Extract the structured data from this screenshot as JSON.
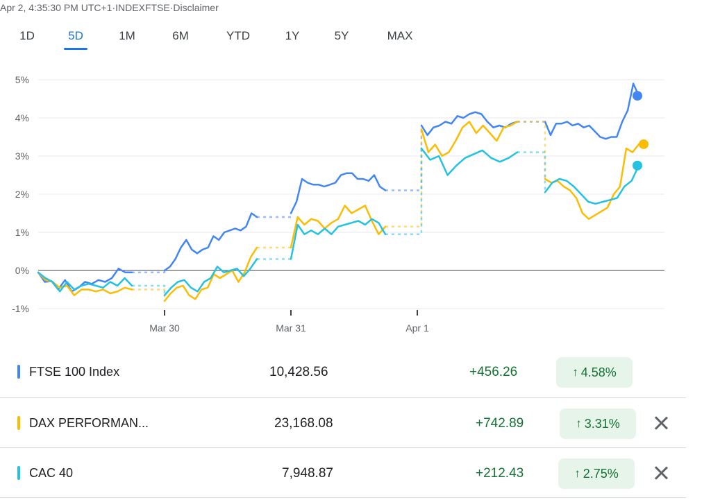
{
  "header": {
    "timestamp": "Apr 2, 4:35:30 PM UTC+1",
    "separator": " · ",
    "symbol": "INDEXFTSE",
    "disclaimer": "Disclaimer"
  },
  "tabs": [
    {
      "label": "1D",
      "active": false
    },
    {
      "label": "5D",
      "active": true
    },
    {
      "label": "1M",
      "active": false
    },
    {
      "label": "6M",
      "active": false
    },
    {
      "label": "YTD",
      "active": false
    },
    {
      "label": "1Y",
      "active": false
    },
    {
      "label": "5Y",
      "active": false
    },
    {
      "label": "MAX",
      "active": false
    }
  ],
  "colors": {
    "ftse": "#4285f4",
    "dax": "#fbbc04",
    "cac": "#24c1e0",
    "positive": "#137333",
    "positive_bg": "#e6f4ea"
  },
  "chart_data": {
    "type": "line",
    "x_ticks": [
      "Mar 30",
      "Mar 31",
      "Apr 1"
    ],
    "y_ticks": [
      "5%",
      "4%",
      "3%",
      "2%",
      "1%",
      "0%",
      "-1%"
    ],
    "ylim": [
      -1,
      5
    ],
    "y_unit": "% change",
    "grid": true,
    "series": [
      {
        "name": "FTSE 100 Index",
        "color": "#4285f4",
        "segments": [
          [
            -0.05,
            -0.3,
            -0.28,
            -0.5,
            -0.25,
            -0.55,
            -0.45,
            -0.3,
            -0.35,
            -0.25,
            -0.3,
            -0.2,
            0.05,
            -0.05,
            -0.05
          ],
          [
            0.0,
            0.1,
            0.3,
            0.6,
            0.8,
            0.55,
            0.45,
            0.55,
            0.6,
            0.9,
            0.8,
            1.0,
            1.05,
            1.1,
            1.05,
            1.15,
            1.5,
            1.4
          ],
          [
            1.5,
            1.8,
            2.4,
            2.3,
            2.25,
            2.25,
            2.2,
            2.25,
            2.3,
            2.5,
            2.55,
            2.55,
            2.4,
            2.4,
            2.35,
            2.5,
            2.2,
            2.1
          ],
          [
            3.8,
            3.55,
            3.75,
            3.8,
            3.9,
            3.85,
            4.05,
            4.0,
            4.1,
            4.15,
            4.1,
            3.9,
            3.75,
            3.8,
            3.75,
            3.85,
            3.9
          ],
          [
            3.9,
            3.55,
            3.85,
            3.85,
            3.9,
            3.8,
            3.85,
            3.75,
            3.8,
            3.65,
            3.5,
            3.45,
            3.5,
            3.5,
            3.9,
            4.2,
            4.9,
            4.58
          ]
        ],
        "last": 4.58
      },
      {
        "name": "DAX PERFORMAN...",
        "color": "#fbbc04",
        "segments": [
          [
            -0.05,
            -0.25,
            -0.3,
            -0.45,
            -0.4,
            -0.65,
            -0.5,
            -0.5,
            -0.55,
            -0.5,
            -0.6,
            -0.55,
            -0.45,
            -0.5
          ],
          [
            -0.8,
            -0.6,
            -0.45,
            -0.4,
            -0.65,
            -0.75,
            -0.5,
            -0.45,
            -0.1,
            -0.2,
            -0.1,
            0.0,
            -0.3,
            -0.05,
            0.35,
            0.6
          ],
          [
            0.6,
            1.4,
            1.2,
            1.35,
            1.3,
            1.1,
            1.25,
            1.35,
            1.7,
            1.5,
            1.6,
            1.7,
            1.3,
            0.95,
            1.15
          ],
          [
            3.7,
            3.1,
            3.3,
            3.0,
            3.1,
            3.4,
            3.75,
            3.9,
            3.6,
            3.8,
            3.6,
            3.4,
            3.75,
            3.8,
            3.9
          ],
          [
            2.4,
            2.3,
            2.35,
            2.2,
            2.1,
            1.9,
            1.5,
            1.35,
            1.45,
            1.55,
            1.65,
            2.0,
            2.2,
            3.2,
            3.1,
            3.31
          ]
        ],
        "last": 3.31
      },
      {
        "name": "CAC 40",
        "color": "#24c1e0",
        "segments": [
          [
            -0.05,
            -0.2,
            -0.3,
            -0.55,
            -0.3,
            -0.5,
            -0.4,
            -0.35,
            -0.4,
            -0.45,
            -0.3,
            -0.4,
            -0.2,
            -0.4
          ],
          [
            -0.65,
            -0.45,
            -0.3,
            -0.25,
            -0.45,
            -0.55,
            -0.3,
            -0.2,
            0.1,
            -0.05,
            0.0,
            0.05,
            -0.15,
            0.05,
            0.3
          ],
          [
            0.3,
            1.2,
            0.95,
            1.05,
            0.95,
            1.1,
            0.95,
            1.15,
            1.2,
            1.25,
            1.3,
            1.2,
            1.35,
            1.25,
            0.95
          ],
          [
            3.2,
            2.9,
            3.0,
            2.5,
            2.75,
            2.95,
            3.05,
            3.15,
            2.95,
            2.85,
            2.95,
            3.1
          ],
          [
            2.05,
            2.3,
            2.4,
            2.35,
            2.2,
            2.0,
            1.8,
            1.75,
            1.8,
            1.85,
            1.9,
            2.2,
            2.35,
            2.75
          ]
        ],
        "last": 2.75
      }
    ]
  },
  "rows": [
    {
      "name": "FTSE 100 Index",
      "price": "10,428.56",
      "change": "+456.26",
      "percent": "4.58%",
      "color": "#4285f4",
      "closable": false
    },
    {
      "name": "DAX PERFORMAN...",
      "price": "23,168.08",
      "change": "+742.89",
      "percent": "3.31%",
      "color": "#fbbc04",
      "closable": true
    },
    {
      "name": "CAC 40",
      "price": "7,948.87",
      "change": "+212.43",
      "percent": "2.75%",
      "color": "#24c1e0",
      "closable": true
    }
  ]
}
